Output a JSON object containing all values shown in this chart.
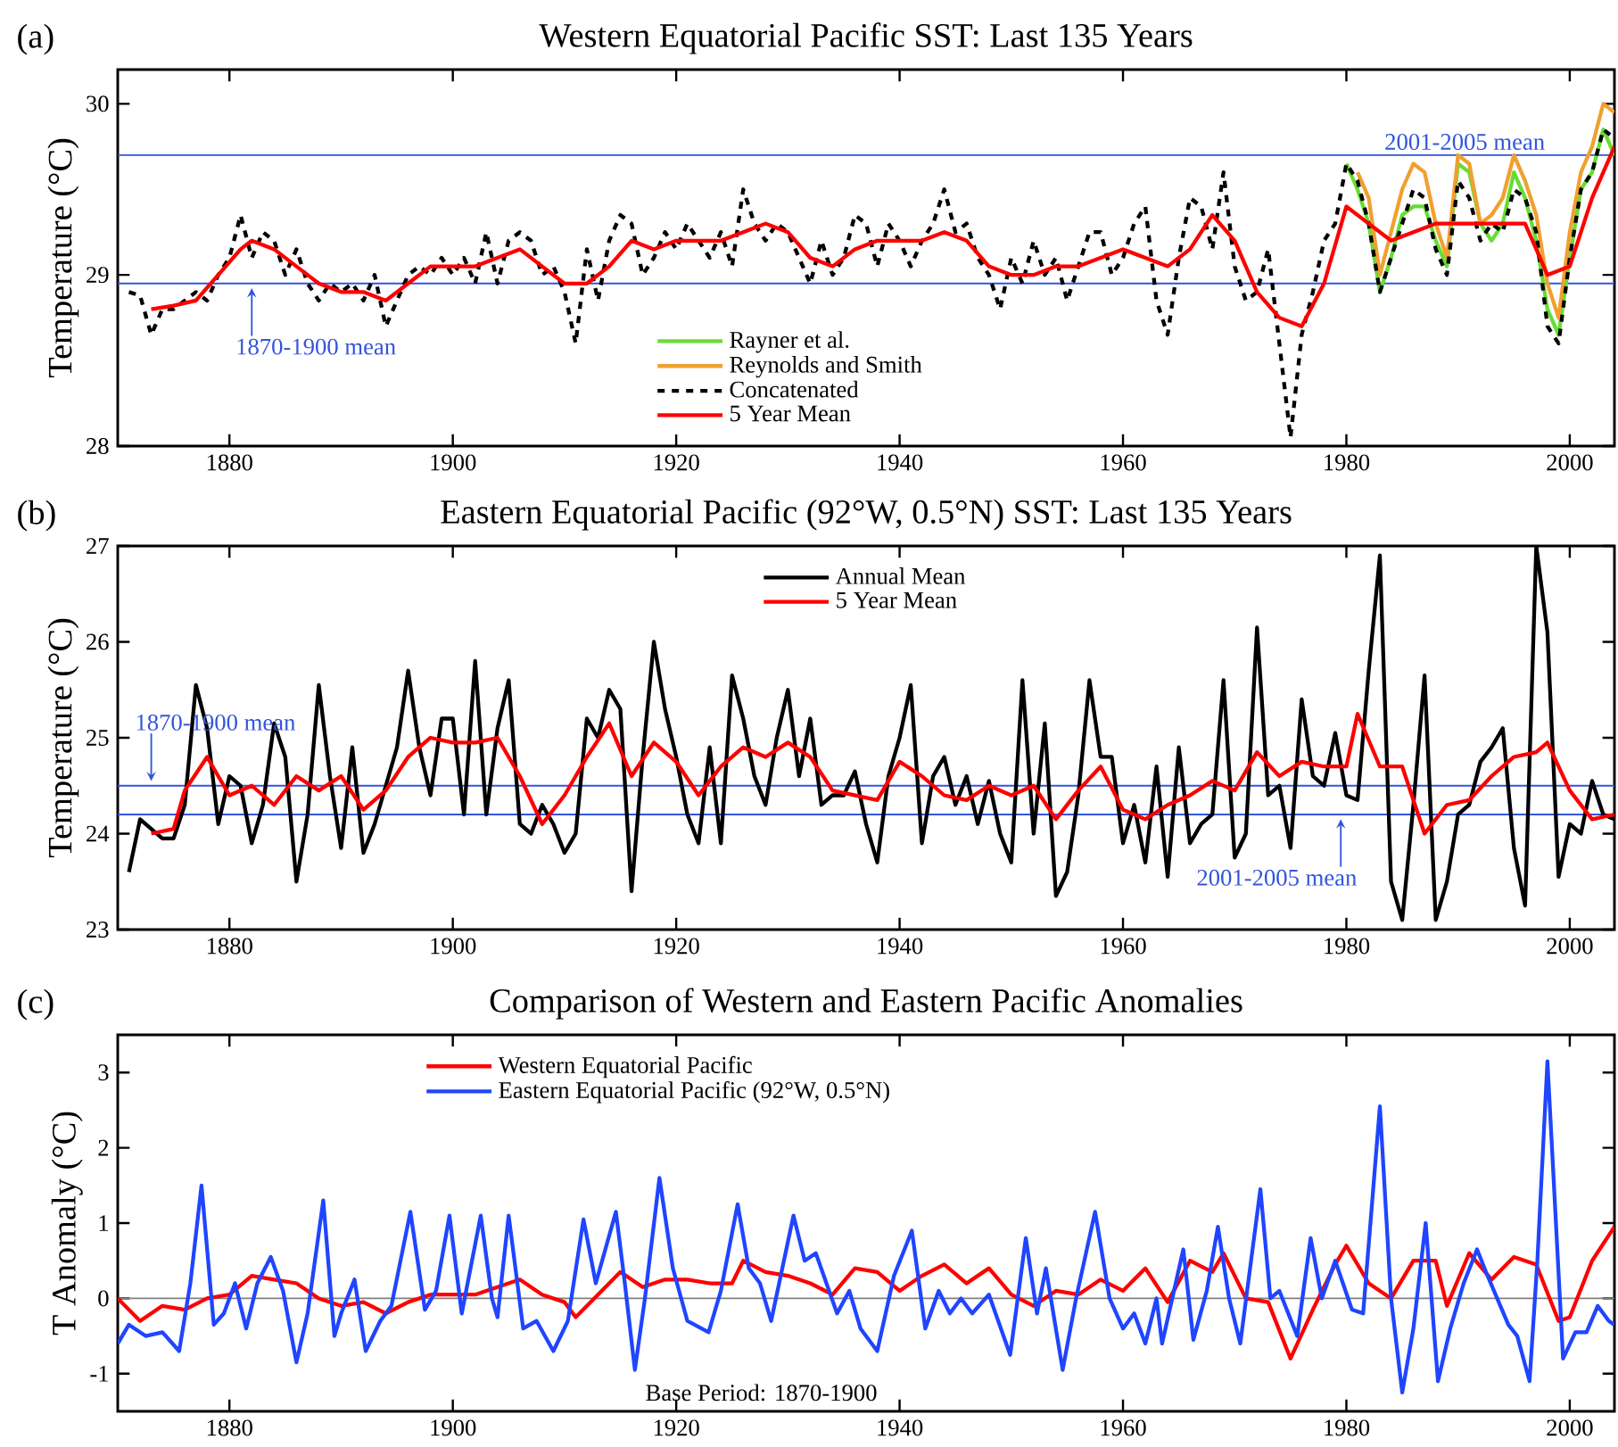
{
  "chart_data": [
    {
      "type": "line",
      "title": "Western Equatorial Pacific SST: Last 135 Years",
      "ylabel": "Temperature (°C)",
      "annotations": [
        "(a)",
        {
          "text": "1870-1900 mean",
          "x": 1882,
          "y": 28.95
        }
      ],
      "xlim": [
        1870,
        2004
      ],
      "ylim": [
        28,
        30.2
      ],
      "xticks": [
        1880,
        1900,
        1920,
        1940,
        1960,
        1980,
        2000
      ],
      "yticks": [
        28,
        29,
        30
      ],
      "ref_lines": [
        {
          "axis": "y",
          "value": 29.7,
          "label": "2001-2005 mean",
          "color": "#3355dd"
        },
        {
          "axis": "y",
          "value": 28.95,
          "color": "#3355dd"
        }
      ],
      "legend": "bottom",
      "grid": false,
      "series": [
        {
          "name": "Rayner et al.",
          "color": "#66dd33",
          "x": [
            1980,
            1981,
            1982,
            1983,
            1984,
            1985,
            1986,
            1987,
            1988,
            1989,
            1990,
            1991,
            1992,
            1993,
            1994,
            1995,
            1996,
            1997,
            1998,
            1999,
            2000,
            2001,
            2002,
            2003,
            2004
          ],
          "values": [
            29.65,
            29.5,
            29.3,
            28.9,
            29.1,
            29.35,
            29.4,
            29.4,
            29.2,
            29.05,
            29.65,
            29.6,
            29.3,
            29.2,
            29.3,
            29.6,
            29.45,
            29.2,
            28.8,
            28.65,
            29.1,
            29.5,
            29.6,
            29.85,
            29.7
          ]
        },
        {
          "name": "Reynolds and Smith",
          "color": "#f0a030",
          "x": [
            1981,
            1982,
            1983,
            1984,
            1985,
            1986,
            1987,
            1988,
            1989,
            1990,
            1991,
            1992,
            1993,
            1994,
            1995,
            1996,
            1997,
            1998,
            1999,
            2000,
            2001,
            2002,
            2003,
            2004
          ],
          "values": [
            29.6,
            29.45,
            29.0,
            29.25,
            29.5,
            29.65,
            29.6,
            29.3,
            29.1,
            29.7,
            29.65,
            29.3,
            29.35,
            29.45,
            29.7,
            29.55,
            29.35,
            28.95,
            28.75,
            29.25,
            29.6,
            29.75,
            30.0,
            29.95
          ]
        },
        {
          "name": "Concatenated",
          "color": "#000000",
          "line_style": "dashed",
          "x": [
            1871,
            1872,
            1873,
            1874,
            1875,
            1876,
            1877,
            1878,
            1879,
            1880,
            1881,
            1882,
            1883,
            1884,
            1885,
            1886,
            1887,
            1888,
            1889,
            1890,
            1891,
            1892,
            1893,
            1894,
            1895,
            1896,
            1897,
            1898,
            1899,
            1900,
            1901,
            1902,
            1903,
            1904,
            1905,
            1906,
            1907,
            1908,
            1909,
            1910,
            1911,
            1912,
            1913,
            1914,
            1915,
            1916,
            1917,
            1918,
            1919,
            1920,
            1921,
            1922,
            1923,
            1924,
            1925,
            1926,
            1927,
            1928,
            1929,
            1930,
            1931,
            1932,
            1933,
            1934,
            1935,
            1936,
            1937,
            1938,
            1939,
            1940,
            1941,
            1942,
            1943,
            1944,
            1945,
            1946,
            1947,
            1948,
            1949,
            1950,
            1951,
            1952,
            1953,
            1954,
            1955,
            1956,
            1957,
            1958,
            1959,
            1960,
            1961,
            1962,
            1963,
            1964,
            1965,
            1966,
            1967,
            1968,
            1969,
            1970,
            1971,
            1972,
            1973,
            1974,
            1975,
            1976,
            1977,
            1978,
            1979,
            1980,
            1981,
            1982,
            1983,
            1984,
            1985,
            1986,
            1987,
            1988,
            1989,
            1990,
            1991,
            1992,
            1993,
            1994,
            1995,
            1996,
            1997,
            1998,
            1999,
            2000,
            2001,
            2002,
            2003,
            2004
          ],
          "values": [
            28.9,
            28.88,
            28.65,
            28.8,
            28.8,
            28.85,
            28.9,
            28.85,
            29.0,
            29.1,
            29.35,
            29.1,
            29.25,
            29.2,
            29.0,
            29.15,
            28.95,
            28.85,
            28.95,
            28.9,
            28.95,
            28.85,
            29.0,
            28.7,
            28.85,
            29.0,
            29.05,
            29.0,
            29.1,
            29.0,
            29.1,
            28.95,
            29.25,
            28.95,
            29.2,
            29.25,
            29.2,
            29.0,
            29.05,
            28.9,
            28.6,
            29.15,
            28.85,
            29.2,
            29.35,
            29.3,
            29.0,
            29.1,
            29.25,
            29.15,
            29.3,
            29.2,
            29.1,
            29.25,
            29.05,
            29.5,
            29.3,
            29.2,
            29.3,
            29.25,
            29.1,
            28.95,
            29.2,
            29.0,
            29.1,
            29.35,
            29.3,
            29.05,
            29.3,
            29.2,
            29.05,
            29.2,
            29.3,
            29.5,
            29.25,
            29.3,
            29.1,
            29.0,
            28.8,
            29.1,
            28.95,
            29.2,
            29.0,
            29.1,
            28.85,
            29.05,
            29.25,
            29.25,
            29.0,
            29.1,
            29.3,
            29.4,
            28.85,
            28.65,
            29.1,
            29.45,
            29.4,
            29.15,
            29.6,
            29.05,
            28.85,
            28.9,
            29.15,
            28.6,
            28.05,
            28.65,
            28.9,
            29.2,
            29.3,
            29.65,
            29.55,
            29.3,
            28.9,
            29.1,
            29.3,
            29.5,
            29.45,
            29.15,
            29.0,
            29.55,
            29.45,
            29.2,
            29.3,
            29.25,
            29.5,
            29.45,
            29.25,
            28.7,
            28.6,
            29.1,
            29.5,
            29.6,
            29.85,
            29.8
          ]
        },
        {
          "name": "5 Year Mean",
          "color": "#ff0000",
          "x": [
            1873,
            1875,
            1877,
            1879,
            1881,
            1882,
            1884,
            1886,
            1888,
            1890,
            1892,
            1894,
            1896,
            1898,
            1900,
            1902,
            1904,
            1906,
            1908,
            1910,
            1912,
            1914,
            1916,
            1918,
            1920,
            1922,
            1924,
            1926,
            1928,
            1930,
            1932,
            1934,
            1936,
            1938,
            1940,
            1942,
            1944,
            1946,
            1948,
            1950,
            1952,
            1954,
            1956,
            1958,
            1960,
            1962,
            1964,
            1966,
            1968,
            1970,
            1972,
            1974,
            1976,
            1978,
            1980,
            1982,
            1984,
            1986,
            1988,
            1990,
            1992,
            1994,
            1996,
            1998,
            2000,
            2002,
            2004
          ],
          "values": [
            28.8,
            28.82,
            28.85,
            29.0,
            29.15,
            29.2,
            29.15,
            29.05,
            28.95,
            28.9,
            28.9,
            28.85,
            28.95,
            29.05,
            29.05,
            29.05,
            29.1,
            29.15,
            29.05,
            28.95,
            28.95,
            29.05,
            29.2,
            29.15,
            29.2,
            29.2,
            29.2,
            29.25,
            29.3,
            29.25,
            29.1,
            29.05,
            29.15,
            29.2,
            29.2,
            29.2,
            29.25,
            29.2,
            29.05,
            29.0,
            29.0,
            29.05,
            29.05,
            29.1,
            29.15,
            29.1,
            29.05,
            29.15,
            29.35,
            29.2,
            28.9,
            28.75,
            28.7,
            28.95,
            29.4,
            29.3,
            29.2,
            29.25,
            29.3,
            29.3,
            29.3,
            29.3,
            29.3,
            29.0,
            29.05,
            29.45,
            29.75
          ]
        }
      ]
    },
    {
      "type": "line",
      "title": "Eastern Equatorial Pacific (92°W, 0.5°N) SST: Last 135 Years",
      "ylabel": "Temperature (°C)",
      "annotations": [
        "(b)",
        {
          "text": "1870-1900 mean",
          "x": 1873,
          "y": 24.5
        },
        {
          "text": "2001-2005 mean",
          "x": 1979.5,
          "y": 24.2
        }
      ],
      "xlim": [
        1870,
        2004
      ],
      "ylim": [
        23,
        27
      ],
      "xticks": [
        1880,
        1900,
        1920,
        1940,
        1960,
        1980,
        2000
      ],
      "yticks": [
        23,
        24,
        25,
        26,
        27
      ],
      "ref_lines": [
        {
          "axis": "y",
          "value": 24.5,
          "color": "#3355dd"
        },
        {
          "axis": "y",
          "value": 24.2,
          "color": "#3355dd"
        }
      ],
      "legend": "top",
      "grid": false,
      "series": [
        {
          "name": "Annual Mean",
          "color": "#000000",
          "x": [
            1871,
            1872,
            1873,
            1874,
            1875,
            1876,
            1877,
            1878,
            1879,
            1880,
            1881,
            1882,
            1883,
            1884,
            1885,
            1886,
            1887,
            1888,
            1889,
            1890,
            1891,
            1892,
            1893,
            1894,
            1895,
            1896,
            1897,
            1898,
            1899,
            1900,
            1901,
            1902,
            1903,
            1904,
            1905,
            1906,
            1907,
            1908,
            1909,
            1910,
            1911,
            1912,
            1913,
            1914,
            1915,
            1916,
            1917,
            1918,
            1919,
            1920,
            1921,
            1922,
            1923,
            1924,
            1925,
            1926,
            1927,
            1928,
            1929,
            1930,
            1931,
            1932,
            1933,
            1934,
            1935,
            1936,
            1937,
            1938,
            1939,
            1940,
            1941,
            1942,
            1943,
            1944,
            1945,
            1946,
            1947,
            1948,
            1949,
            1950,
            1951,
            1952,
            1953,
            1954,
            1955,
            1956,
            1957,
            1958,
            1959,
            1960,
            1961,
            1962,
            1963,
            1964,
            1965,
            1966,
            1967,
            1968,
            1969,
            1970,
            1971,
            1972,
            1973,
            1974,
            1975,
            1976,
            1977,
            1978,
            1979,
            1980,
            1981,
            1982,
            1983,
            1984,
            1985,
            1986,
            1987,
            1988,
            1989,
            1990,
            1991,
            1992,
            1993,
            1994,
            1995,
            1996,
            1997,
            1998,
            1999,
            2000,
            2001,
            2002,
            2003,
            2004
          ],
          "values": [
            23.6,
            24.15,
            24.05,
            23.95,
            23.95,
            24.3,
            25.55,
            25.1,
            24.1,
            24.6,
            24.5,
            23.9,
            24.3,
            25.15,
            24.8,
            23.5,
            24.2,
            25.55,
            24.6,
            23.85,
            24.9,
            23.8,
            24.1,
            24.5,
            24.9,
            25.7,
            24.9,
            24.4,
            25.2,
            25.2,
            24.2,
            25.8,
            24.2,
            25.1,
            25.6,
            24.1,
            24.0,
            24.3,
            24.1,
            23.8,
            24.0,
            25.2,
            25.0,
            25.5,
            25.3,
            23.4,
            24.8,
            26.0,
            25.3,
            24.8,
            24.2,
            23.9,
            24.9,
            23.9,
            25.65,
            25.2,
            24.6,
            24.3,
            25.0,
            25.5,
            24.6,
            25.2,
            24.3,
            24.4,
            24.4,
            24.65,
            24.1,
            23.7,
            24.6,
            25.0,
            25.55,
            23.9,
            24.6,
            24.8,
            24.3,
            24.6,
            24.1,
            24.55,
            24.0,
            23.7,
            25.6,
            24.0,
            25.15,
            23.35,
            23.6,
            24.4,
            25.6,
            24.8,
            24.8,
            23.9,
            24.3,
            23.7,
            24.7,
            23.55,
            24.9,
            23.9,
            24.1,
            24.2,
            25.6,
            23.75,
            24.0,
            26.15,
            24.4,
            24.5,
            23.85,
            25.4,
            24.6,
            24.5,
            25.05,
            24.4,
            24.35,
            25.7,
            26.9,
            23.5,
            23.1,
            24.3,
            25.65,
            23.1,
            23.5,
            24.2,
            24.3,
            24.75,
            24.9,
            25.1,
            23.85,
            23.25,
            27.0,
            26.1,
            23.55,
            24.1,
            24.0,
            24.55,
            24.2,
            24.15
          ]
        },
        {
          "name": "5 Year Mean",
          "color": "#ff0000",
          "x": [
            1873,
            1875,
            1876,
            1878,
            1880,
            1882,
            1884,
            1886,
            1888,
            1890,
            1892,
            1894,
            1896,
            1898,
            1900,
            1902,
            1904,
            1906,
            1908,
            1910,
            1912,
            1914,
            1916,
            1918,
            1920,
            1922,
            1924,
            1926,
            1928,
            1930,
            1932,
            1934,
            1936,
            1938,
            1940,
            1942,
            1944,
            1946,
            1948,
            1950,
            1952,
            1954,
            1956,
            1958,
            1960,
            1962,
            1964,
            1966,
            1968,
            1970,
            1972,
            1974,
            1976,
            1978,
            1980,
            1981,
            1983,
            1985,
            1987,
            1989,
            1991,
            1993,
            1995,
            1997,
            1998,
            2000,
            2002,
            2004
          ],
          "values": [
            24.0,
            24.05,
            24.45,
            24.8,
            24.4,
            24.5,
            24.3,
            24.6,
            24.45,
            24.6,
            24.25,
            24.45,
            24.8,
            25.0,
            24.95,
            24.95,
            25.0,
            24.6,
            24.1,
            24.4,
            24.8,
            25.15,
            24.6,
            24.95,
            24.75,
            24.4,
            24.7,
            24.9,
            24.8,
            24.95,
            24.8,
            24.45,
            24.4,
            24.35,
            24.75,
            24.6,
            24.4,
            24.35,
            24.5,
            24.4,
            24.5,
            24.15,
            24.45,
            24.7,
            24.25,
            24.15,
            24.3,
            24.4,
            24.55,
            24.45,
            24.85,
            24.6,
            24.75,
            24.7,
            24.7,
            25.25,
            24.7,
            24.7,
            24.0,
            24.3,
            24.35,
            24.6,
            24.8,
            24.85,
            24.95,
            24.45,
            24.15,
            24.2
          ]
        }
      ]
    },
    {
      "type": "line",
      "title": "Comparison of Western and Eastern Pacific Anomalies",
      "ylabel": "T Anomaly (°C)",
      "annotations": [
        "(c)",
        "Base Period: 1870-1900"
      ],
      "xlim": [
        1870,
        2004
      ],
      "ylim": [
        -1.5,
        3.5
      ],
      "xticks": [
        1880,
        1900,
        1920,
        1940,
        1960,
        1980,
        2000
      ],
      "yticks": [
        -1,
        0,
        1,
        2,
        3
      ],
      "ref_lines": [
        {
          "axis": "y",
          "value": 0,
          "color": "#808080"
        }
      ],
      "legend": "top left",
      "grid": false,
      "series": [
        {
          "name": "Western Equatorial Pacific",
          "color": "#ff0000",
          "x": [
            1870,
            1872,
            1874,
            1876,
            1878,
            1880,
            1882,
            1884,
            1886,
            1888,
            1890,
            1892,
            1894,
            1896,
            1898,
            1900,
            1902,
            1904,
            1906,
            1908,
            1910,
            1911,
            1913,
            1915,
            1917,
            1919,
            1921,
            1923,
            1925,
            1926,
            1928,
            1930,
            1932,
            1934,
            1936,
            1938,
            1940,
            1942,
            1944,
            1946,
            1948,
            1950,
            1952,
            1954,
            1956,
            1958,
            1960,
            1962,
            1964,
            1966,
            1968,
            1969,
            1971,
            1973,
            1975,
            1977,
            1979,
            1980,
            1982,
            1984,
            1986,
            1988,
            1989,
            1991,
            1993,
            1995,
            1997,
            1999,
            2000,
            2002,
            2004
          ],
          "values": [
            0.0,
            -0.3,
            -0.1,
            -0.15,
            0.0,
            0.05,
            0.3,
            0.25,
            0.2,
            0.0,
            -0.1,
            -0.05,
            -0.2,
            -0.05,
            0.05,
            0.05,
            0.05,
            0.15,
            0.25,
            0.05,
            -0.05,
            -0.25,
            0.05,
            0.35,
            0.15,
            0.25,
            0.25,
            0.2,
            0.2,
            0.5,
            0.35,
            0.3,
            0.2,
            0.05,
            0.4,
            0.35,
            0.1,
            0.3,
            0.45,
            0.2,
            0.4,
            0.05,
            -0.1,
            0.1,
            0.05,
            0.25,
            0.1,
            0.4,
            -0.05,
            0.5,
            0.35,
            0.6,
            0.0,
            -0.05,
            -0.8,
            -0.15,
            0.45,
            0.7,
            0.2,
            0.0,
            0.5,
            0.5,
            -0.1,
            0.6,
            0.25,
            0.55,
            0.45,
            -0.3,
            -0.25,
            0.5,
            0.95
          ]
        },
        {
          "name": "Eastern Equatorial Pacific (92°W, 0.5°N)",
          "color": "#1f45ff",
          "x": [
            1870,
            1871,
            1872.5,
            1874,
            1875.5,
            1876.5,
            1877.5,
            1878.6,
            1879.5,
            1880.5,
            1881.5,
            1882.5,
            1883.7,
            1884.8,
            1886,
            1887,
            1888.4,
            1889.4,
            1890,
            1891.2,
            1892.2,
            1893.5,
            1894.5,
            1896.2,
            1897.5,
            1898.5,
            1899.7,
            1900.8,
            1902.5,
            1903.5,
            1904,
            1905,
            1906.3,
            1907.5,
            1909,
            1910.3,
            1911.7,
            1912.8,
            1914.6,
            1915.4,
            1916.3,
            1917.2,
            1918.5,
            1919.7,
            1921,
            1922.9,
            1924,
            1925.5,
            1926.5,
            1927.5,
            1928.5,
            1930.5,
            1931.5,
            1932.5,
            1934.4,
            1935.5,
            1936.5,
            1938,
            1939.5,
            1941.1,
            1942.3,
            1943.5,
            1944.5,
            1945.5,
            1946.5,
            1948,
            1949.9,
            1951.3,
            1952.3,
            1953.1,
            1954.6,
            1955.8,
            1957.5,
            1958.8,
            1960,
            1961,
            1962,
            1963,
            1963.5,
            1965.4,
            1966.3,
            1967.5,
            1968.5,
            1969.5,
            1970.5,
            1972.3,
            1973.2,
            1974,
            1975.6,
            1976.8,
            1977.8,
            1979,
            1980.5,
            1981.5,
            1983,
            1984,
            1985,
            1986,
            1987.1,
            1988.2,
            1989.3,
            1990.5,
            1991.7,
            1992.5,
            1993.5,
            1994.5,
            1995.3,
            1996.4,
            1997.1,
            1998,
            1999.4,
            2000.5,
            2001.5,
            2002.5,
            2003.5,
            2004
          ],
          "values": [
            -0.6,
            -0.35,
            -0.5,
            -0.45,
            -0.7,
            0.2,
            1.5,
            -0.35,
            -0.2,
            0.2,
            -0.4,
            0.2,
            0.55,
            0.1,
            -0.85,
            -0.2,
            1.3,
            -0.5,
            -0.2,
            0.25,
            -0.7,
            -0.3,
            -0.1,
            1.15,
            -0.15,
            0.1,
            1.1,
            -0.2,
            1.1,
            0.0,
            -0.25,
            1.1,
            -0.4,
            -0.3,
            -0.7,
            -0.3,
            1.05,
            0.2,
            1.15,
            0.2,
            -0.95,
            0.0,
            1.6,
            0.4,
            -0.3,
            -0.45,
            0.1,
            1.25,
            0.4,
            0.2,
            -0.3,
            1.1,
            0.5,
            0.6,
            -0.2,
            0.1,
            -0.4,
            -0.7,
            0.3,
            0.9,
            -0.4,
            0.1,
            -0.2,
            0.0,
            -0.2,
            0.05,
            -0.75,
            0.8,
            -0.2,
            0.4,
            -0.95,
            0.0,
            1.15,
            0.0,
            -0.4,
            -0.2,
            -0.6,
            0.0,
            -0.6,
            0.65,
            -0.55,
            0.1,
            0.95,
            0.0,
            -0.6,
            1.45,
            0.0,
            0.1,
            -0.5,
            0.8,
            0.0,
            0.5,
            -0.15,
            -0.2,
            2.55,
            0.0,
            -1.25,
            -0.4,
            1.0,
            -1.1,
            -0.4,
            0.2,
            0.65,
            0.35,
            0.0,
            -0.35,
            -0.5,
            -1.1,
            0.5,
            3.15,
            -0.8,
            -0.45,
            -0.45,
            -0.1,
            -0.3,
            -0.35
          ]
        }
      ]
    }
  ]
}
